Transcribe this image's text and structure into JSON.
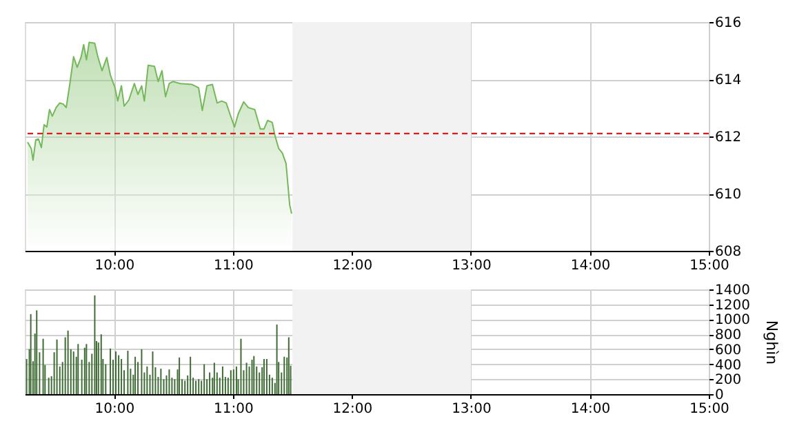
{
  "chart_data": [
    {
      "type": "area",
      "x": [
        9.273,
        9.304,
        9.319,
        9.342,
        9.365,
        9.389,
        9.412,
        9.435,
        9.458,
        9.481,
        9.513,
        9.544,
        9.574,
        9.598,
        9.629,
        9.66,
        9.69,
        9.722,
        9.745,
        9.768,
        9.791,
        9.838,
        9.861,
        9.899,
        9.939,
        9.969,
        10.008,
        10.031,
        10.062,
        10.085,
        10.124,
        10.171,
        10.201,
        10.232,
        10.255,
        10.287,
        10.34,
        10.371,
        10.403,
        10.433,
        10.464,
        10.495,
        10.557,
        10.653,
        10.711,
        10.742,
        10.781,
        10.827,
        10.867,
        10.905,
        10.943,
        10.974,
        11.013,
        11.044,
        11.09,
        11.129,
        11.183,
        11.23,
        11.261,
        11.291,
        11.33,
        11.353,
        11.384,
        11.415,
        11.446,
        11.477,
        11.493
      ],
      "series": [
        {
          "color": "#74b85a",
          "values": [
            611.8,
            611.58,
            611.17,
            611.88,
            611.91,
            611.61,
            612.41,
            612.33,
            612.94,
            612.71,
            613.01,
            613.17,
            613.13,
            613.01,
            613.85,
            614.79,
            614.42,
            614.76,
            615.21,
            614.68,
            615.29,
            615.26,
            614.83,
            614.3,
            614.76,
            614.15,
            613.7,
            613.24,
            613.77,
            613.06,
            613.27,
            613.85,
            613.47,
            613.77,
            613.24,
            614.49,
            614.45,
            613.92,
            614.3,
            613.39,
            613.85,
            613.92,
            613.85,
            613.82,
            613.7,
            612.91,
            613.77,
            613.82,
            613.17,
            613.24,
            613.17,
            612.79,
            612.33,
            612.79,
            613.21,
            613.01,
            612.94,
            612.26,
            612.26,
            612.56,
            612.49,
            612.03,
            611.58,
            611.42,
            611.05,
            609.6,
            609.3
          ]
        }
      ],
      "xlim": [
        9.25,
        15
      ],
      "xticks": [
        {
          "value": 10,
          "label": "10:00"
        },
        {
          "value": 11,
          "label": "11:00"
        },
        {
          "value": 12,
          "label": "12:00"
        },
        {
          "value": 13,
          "label": "13:00"
        },
        {
          "value": 14,
          "label": "14:00"
        },
        {
          "value": 15,
          "label": "15:00"
        }
      ],
      "ylim": [
        608,
        616
      ],
      "yticks": [
        608,
        610,
        612,
        614,
        616
      ],
      "ref_lines": [
        {
          "axis": "y",
          "value": 612.1,
          "color": "#e00000",
          "line_style": "dashed"
        }
      ],
      "bands": [
        {
          "axis": "x",
          "from": 11.5,
          "to": 13,
          "color": "#f2f2f2"
        }
      ],
      "grid": true,
      "legend": false
    },
    {
      "type": "bar",
      "x": [
        9.265,
        9.288,
        9.3,
        9.319,
        9.335,
        9.35,
        9.374,
        9.404,
        9.42,
        9.451,
        9.474,
        9.497,
        9.52,
        9.544,
        9.567,
        9.59,
        9.613,
        9.637,
        9.66,
        9.683,
        9.698,
        9.729,
        9.753,
        9.768,
        9.791,
        9.814,
        9.838,
        9.853,
        9.869,
        9.892,
        9.907,
        9.93,
        9.969,
        9.992,
        10.015,
        10.039,
        10.062,
        10.085,
        10.116,
        10.139,
        10.162,
        10.178,
        10.201,
        10.232,
        10.255,
        10.278,
        10.302,
        10.325,
        10.348,
        10.371,
        10.394,
        10.418,
        10.441,
        10.464,
        10.487,
        10.51,
        10.534,
        10.549,
        10.572,
        10.596,
        10.619,
        10.642,
        10.665,
        10.688,
        10.712,
        10.735,
        10.758,
        10.781,
        10.804,
        10.828,
        10.843,
        10.866,
        10.889,
        10.913,
        10.936,
        10.959,
        10.982,
        11.005,
        11.029,
        11.044,
        11.067,
        11.09,
        11.114,
        11.137,
        11.16,
        11.176,
        11.199,
        11.222,
        11.245,
        11.261,
        11.284,
        11.307,
        11.33,
        11.353,
        11.369,
        11.384,
        11.408,
        11.431,
        11.454,
        11.469,
        11.485
      ],
      "series": [
        {
          "color": "#3f6b35",
          "values": [
            470,
            600,
            1070,
            440,
            810,
            1120,
            560,
            740,
            390,
            220,
            240,
            560,
            730,
            370,
            430,
            760,
            850,
            600,
            570,
            500,
            670,
            460,
            620,
            670,
            430,
            540,
            1320,
            710,
            690,
            800,
            470,
            400,
            610,
            460,
            570,
            520,
            470,
            320,
            580,
            340,
            260,
            500,
            430,
            600,
            290,
            370,
            260,
            570,
            360,
            230,
            340,
            200,
            250,
            330,
            220,
            200,
            330,
            490,
            200,
            180,
            250,
            500,
            220,
            180,
            200,
            180,
            400,
            200,
            290,
            220,
            420,
            290,
            220,
            370,
            230,
            220,
            320,
            330,
            370,
            200,
            740,
            320,
            420,
            370,
            460,
            510,
            370,
            290,
            360,
            470,
            470,
            260,
            220,
            150,
            930,
            430,
            290,
            500,
            490,
            760,
            380
          ]
        }
      ],
      "xlim": [
        9.25,
        15
      ],
      "xticks": [
        {
          "value": 10,
          "label": "10:00"
        },
        {
          "value": 11,
          "label": "11:00"
        },
        {
          "value": 12,
          "label": "12:00"
        },
        {
          "value": 13,
          "label": "13:00"
        },
        {
          "value": 14,
          "label": "14:00"
        },
        {
          "value": 15,
          "label": "15:00"
        }
      ],
      "ylim": [
        0,
        1400
      ],
      "yticks": [
        0,
        200,
        400,
        600,
        800,
        1000,
        1200,
        1400
      ],
      "ylabel": "Nghìn",
      "bands": [
        {
          "axis": "x",
          "from": 11.5,
          "to": 13,
          "color": "#f2f2f2"
        }
      ],
      "grid": true,
      "legend": false
    }
  ]
}
